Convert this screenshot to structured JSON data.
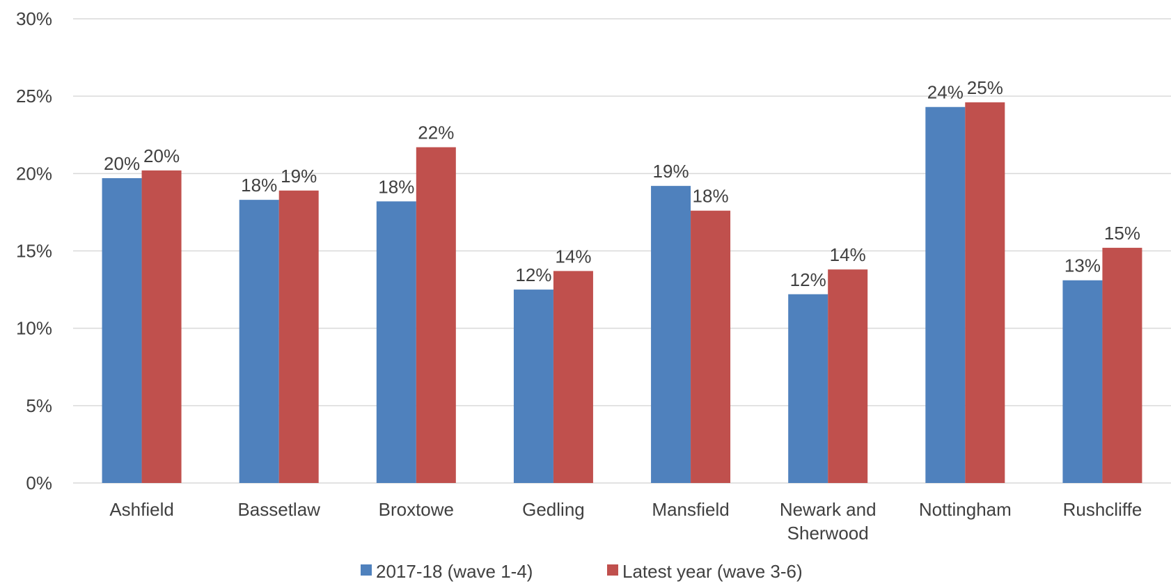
{
  "chart_data": {
    "type": "bar",
    "title": "",
    "xlabel": "",
    "ylabel": "",
    "ylim": [
      0,
      30
    ],
    "yticks": [
      "0%",
      "5%",
      "10%",
      "15%",
      "20%",
      "25%",
      "30%"
    ],
    "grid": true,
    "legend_position": "bottom",
    "categories": [
      "Ashfield",
      "Bassetlaw",
      "Broxtowe",
      "Gedling",
      "Mansfield",
      "Newark and Sherwood",
      "Nottingham",
      "Rushcliffe"
    ],
    "series": [
      {
        "name": "2017-18 (wave 1-4)",
        "color": "#4f81bd",
        "values": [
          19.7,
          18.3,
          18.2,
          12.5,
          19.2,
          12.2,
          24.3,
          13.1
        ],
        "labels": [
          "20%",
          "18%",
          "18%",
          "12%",
          "19%",
          "12%",
          "24%",
          "13%"
        ]
      },
      {
        "name": "Latest year (wave 3-6)",
        "color": "#c0504d",
        "values": [
          20.2,
          18.9,
          21.7,
          13.7,
          17.6,
          13.8,
          24.6,
          15.2
        ],
        "labels": [
          "20%",
          "19%",
          "22%",
          "14%",
          "18%",
          "14%",
          "25%",
          "15%"
        ]
      }
    ]
  }
}
